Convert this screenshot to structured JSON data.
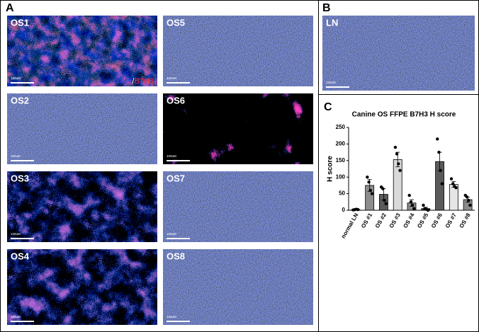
{
  "panel_labels": [
    "A",
    "B",
    "C"
  ],
  "stain_legend": [
    "DAPI",
    "/",
    "B7H3"
  ],
  "images": [
    {
      "label": "OS1",
      "scale": "100uM"
    },
    {
      "label": "OS5",
      "scale": "100uM"
    },
    {
      "label": "OS2",
      "scale": "100uM"
    },
    {
      "label": "OS6",
      "scale": "100uM"
    },
    {
      "label": "OS3",
      "scale": "100uM"
    },
    {
      "label": "OS7",
      "scale": "100uM"
    },
    {
      "label": "OS4",
      "scale": "100uM"
    },
    {
      "label": "OS8",
      "scale": "100uM"
    },
    {
      "label": "LN",
      "scale": "100uM"
    }
  ],
  "chart_data": {
    "type": "bar",
    "title": "Canine OS FFPE B7H3 H score",
    "y_label": "H score",
    "categories": [
      "normal LN",
      "OS #1",
      "OS #2",
      "OS #3",
      "OS #4",
      "OS #5",
      "OS #6",
      "OS #7",
      "OS #8"
    ],
    "values": [
      2,
      75,
      48,
      153,
      22,
      5,
      147,
      78,
      32
    ],
    "errors": [
      1,
      18,
      17,
      22,
      10,
      4,
      28,
      9,
      8
    ],
    "colors": [
      "#111111",
      "#8c8c8c",
      "#5a5a5a",
      "#d9d9d9",
      "#8c8c8c",
      "#3a3a3a",
      "#5a5a5a",
      "#e6e6e6",
      "#8c8c8c"
    ],
    "points": [
      [
        1,
        2,
        3,
        2
      ],
      [
        100,
        85,
        60,
        50
      ],
      [
        70,
        65,
        30,
        20
      ],
      [
        190,
        170,
        140,
        120
      ],
      [
        45,
        25,
        15,
        5
      ],
      [
        15,
        5,
        3,
        0
      ],
      [
        215,
        175,
        120,
        80
      ],
      [
        95,
        80,
        72,
        68
      ],
      [
        45,
        40,
        30,
        15
      ]
    ],
    "ylim": [
      0,
      250
    ],
    "yticks": [
      0,
      50,
      100,
      150,
      200,
      250
    ]
  }
}
